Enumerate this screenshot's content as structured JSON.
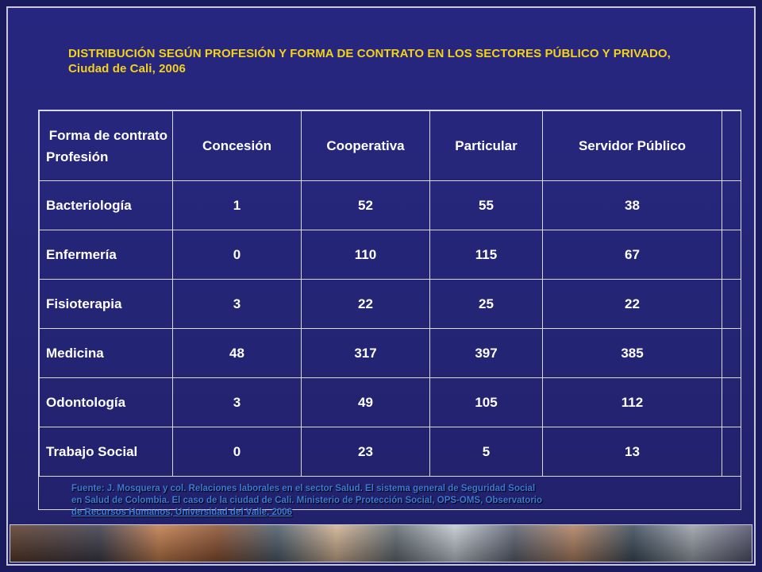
{
  "slide": {
    "title": "DISTRIBUCIÓN SEGÚN PROFESIÓN Y FORMA DE CONTRATO  EN LOS SECTORES PÚBLICO Y PRIVADO, Ciudad de Cali, 2006",
    "table": {
      "corner_top": "Forma de contrato",
      "corner_bottom": "Profesión",
      "columns": [
        "Concesión",
        "Cooperativa",
        "Particular",
        "Servidor Público"
      ],
      "rows": [
        {
          "label": "Bacteriología",
          "values": [
            "1",
            "52",
            "55",
            "38"
          ]
        },
        {
          "label": "Enfermería",
          "values": [
            "0",
            "110",
            "115",
            "67"
          ]
        },
        {
          "label": "Fisioterapia",
          "values": [
            "3",
            "22",
            "25",
            "22"
          ]
        },
        {
          "label": "Medicina",
          "values": [
            "48",
            "317",
            "397",
            "385"
          ]
        },
        {
          "label": "Odontología",
          "values": [
            "3",
            "49",
            "105",
            "112"
          ]
        },
        {
          "label": "Trabajo Social",
          "values": [
            "0",
            "23",
            "5",
            "13"
          ]
        }
      ]
    },
    "source_line1": "Fuente: J. Mosquera y col. Relaciones laborales en el sector Salud. El sistema general de Seguridad Social",
    "source_line2": "en Salud de Colombia. El caso de la ciudad de Cali. Ministerio de Protección Social, OPS-OMS,  Observatorio",
    "source_line3": "de Recursos Humanos, Universidad del Valle, 2006"
  }
}
